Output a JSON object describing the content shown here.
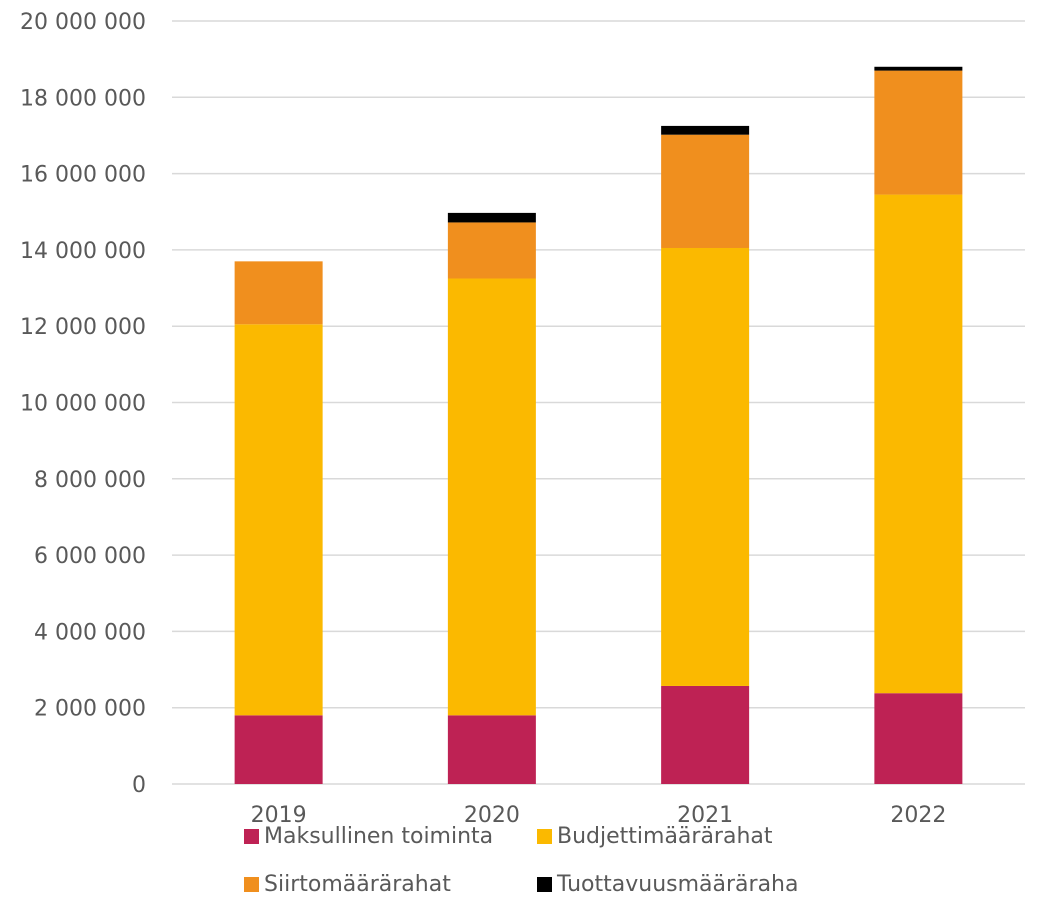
{
  "chart_data": {
    "type": "bar",
    "stacked": true,
    "title": "",
    "xlabel": "",
    "ylabel": "",
    "categories": [
      "2019",
      "2020",
      "2021",
      "2022"
    ],
    "ylim": [
      0,
      20000000
    ],
    "y_ticks": [
      "0",
      "2 000 000",
      "4 000 000",
      "6 000 000",
      "8 000 000",
      "10 000 000",
      "12 000 000",
      "14 000 000",
      "16 000 000",
      "18 000 000",
      "20 000 000"
    ],
    "y_tick_values": [
      0,
      2000000,
      4000000,
      6000000,
      8000000,
      10000000,
      12000000,
      14000000,
      16000000,
      18000000,
      20000000
    ],
    "grid": true,
    "legend_position": "bottom",
    "series": [
      {
        "name": "Maksullinen toiminta",
        "color": "#be2254",
        "values": [
          1800000,
          1800000,
          2570000,
          2380000
        ]
      },
      {
        "name": "Budjettimäärärahat",
        "color": "#fbb900",
        "values": [
          10250000,
          11450000,
          11480000,
          13070000
        ]
      },
      {
        "name": "Siirtomäärärahat",
        "color": "#f08f1e",
        "values": [
          1650000,
          1470000,
          2970000,
          3250000
        ]
      },
      {
        "name": "Tuottavuusmääräraha",
        "color": "#000000",
        "values": [
          0,
          250000,
          230000,
          100000
        ]
      }
    ]
  }
}
